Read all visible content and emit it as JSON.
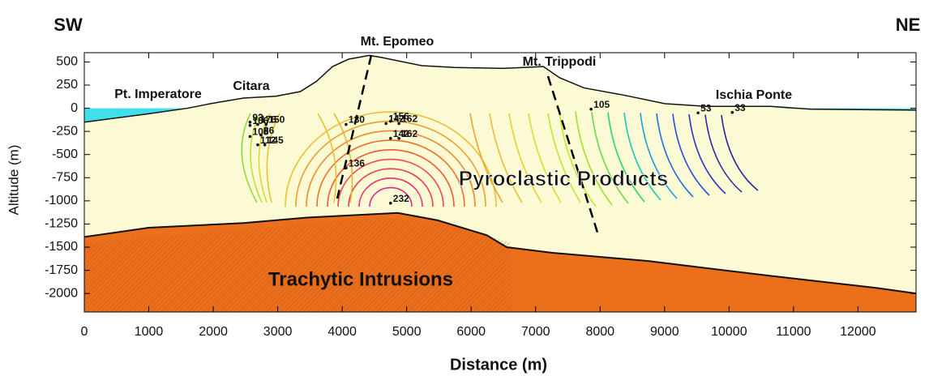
{
  "chart_data": {
    "type": "section",
    "title_left": "SW",
    "title_right": "NE",
    "x_label": "Distance (m)",
    "y_label": "Altitude (m)",
    "xlim": [
      0,
      12900
    ],
    "ylim": [
      -2200,
      600
    ],
    "xticks": [
      0,
      1000,
      2000,
      3000,
      4000,
      5000,
      6000,
      7000,
      8000,
      9000,
      10000,
      11000,
      12000
    ],
    "yticks": [
      500,
      250,
      0,
      -250,
      -500,
      -750,
      -1000,
      -1250,
      -1500,
      -1750,
      -2000
    ],
    "surface": {
      "x": [
        0,
        1000,
        1600,
        1960,
        2470,
        2970,
        3350,
        3600,
        3850,
        4100,
        4420,
        4600,
        5230,
        5740,
        6490,
        7120,
        7370,
        7750,
        8380,
        9000,
        9640,
        10640,
        11270,
        12900
      ],
      "y": [
        -150,
        -60,
        0,
        50,
        110,
        130,
        180,
        290,
        450,
        530,
        570,
        550,
        460,
        440,
        430,
        450,
        330,
        220,
        140,
        50,
        20,
        20,
        -10,
        -20
      ]
    },
    "intrusion_top": {
      "x": [
        0,
        1000,
        2470,
        3470,
        4860,
        5480,
        6240,
        6550,
        7250,
        8750,
        10640,
        12280,
        12900
      ],
      "y": [
        -1390,
        -1290,
        -1240,
        -1180,
        -1130,
        -1210,
        -1370,
        -1500,
        -1560,
        -1650,
        -1810,
        -1940,
        -2000
      ]
    },
    "points": {
      "x": [
        2570,
        2690,
        2570,
        2820,
        2570,
        2740,
        2800,
        2690,
        4060,
        4680,
        4750,
        4880,
        4750,
        4880,
        4060,
        4750,
        7860,
        9520,
        10050
      ],
      "y": [
        -150,
        -175,
        -185,
        -175,
        -305,
        -290,
        -395,
        -395,
        -175,
        -165,
        -140,
        -165,
        -325,
        -325,
        -645,
        -1025,
        -10,
        -50,
        -45
      ],
      "values": [
        93,
        176,
        106,
        150,
        108,
        86,
        145,
        112,
        130,
        142,
        156,
        162,
        142,
        162,
        136,
        232,
        105,
        53,
        33
      ]
    },
    "place_labels": [
      "Pt. Imperatore",
      "Citara",
      "Mt. Epomeo",
      "Mt. Trippodi",
      "Ischia Ponte"
    ],
    "unit_labels": [
      "Pyroclastic Products",
      "Trachytic Intrusions"
    ],
    "fill_color": "#fcfad4",
    "intrusion_color": "#ec6f1c",
    "sea_color": "#40e0ea"
  }
}
